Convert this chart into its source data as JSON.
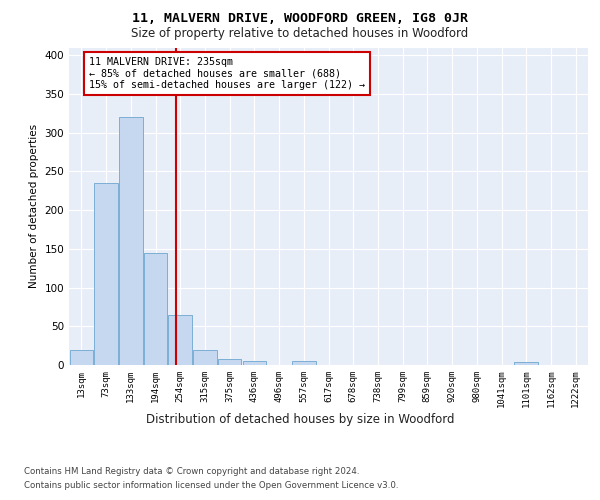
{
  "title": "11, MALVERN DRIVE, WOODFORD GREEN, IG8 0JR",
  "subtitle": "Size of property relative to detached houses in Woodford",
  "xlabel": "Distribution of detached houses by size in Woodford",
  "ylabel": "Number of detached properties",
  "bar_values": [
    20,
    235,
    320,
    145,
    65,
    20,
    8,
    5,
    0,
    5,
    0,
    0,
    0,
    0,
    0,
    0,
    0,
    0,
    4,
    0,
    0
  ],
  "bar_labels": [
    "13sqm",
    "73sqm",
    "133sqm",
    "194sqm",
    "254sqm",
    "315sqm",
    "375sqm",
    "436sqm",
    "496sqm",
    "557sqm",
    "617sqm",
    "678sqm",
    "738sqm",
    "799sqm",
    "859sqm",
    "920sqm",
    "980sqm",
    "1041sqm",
    "1101sqm",
    "1162sqm",
    "1222sqm"
  ],
  "bar_color": "#c5d8f0",
  "bar_edgecolor": "#7bafd4",
  "vline_x": 3.82,
  "vline_color": "#cc0000",
  "annotation_text": "11 MALVERN DRIVE: 235sqm\n← 85% of detached houses are smaller (688)\n15% of semi-detached houses are larger (122) →",
  "annotation_box_edgecolor": "#cc0000",
  "ylim": [
    0,
    410
  ],
  "yticks": [
    0,
    50,
    100,
    150,
    200,
    250,
    300,
    350,
    400
  ],
  "background_color": "#e8eef8",
  "footer_line1": "Contains HM Land Registry data © Crown copyright and database right 2024.",
  "footer_line2": "Contains public sector information licensed under the Open Government Licence v3.0."
}
